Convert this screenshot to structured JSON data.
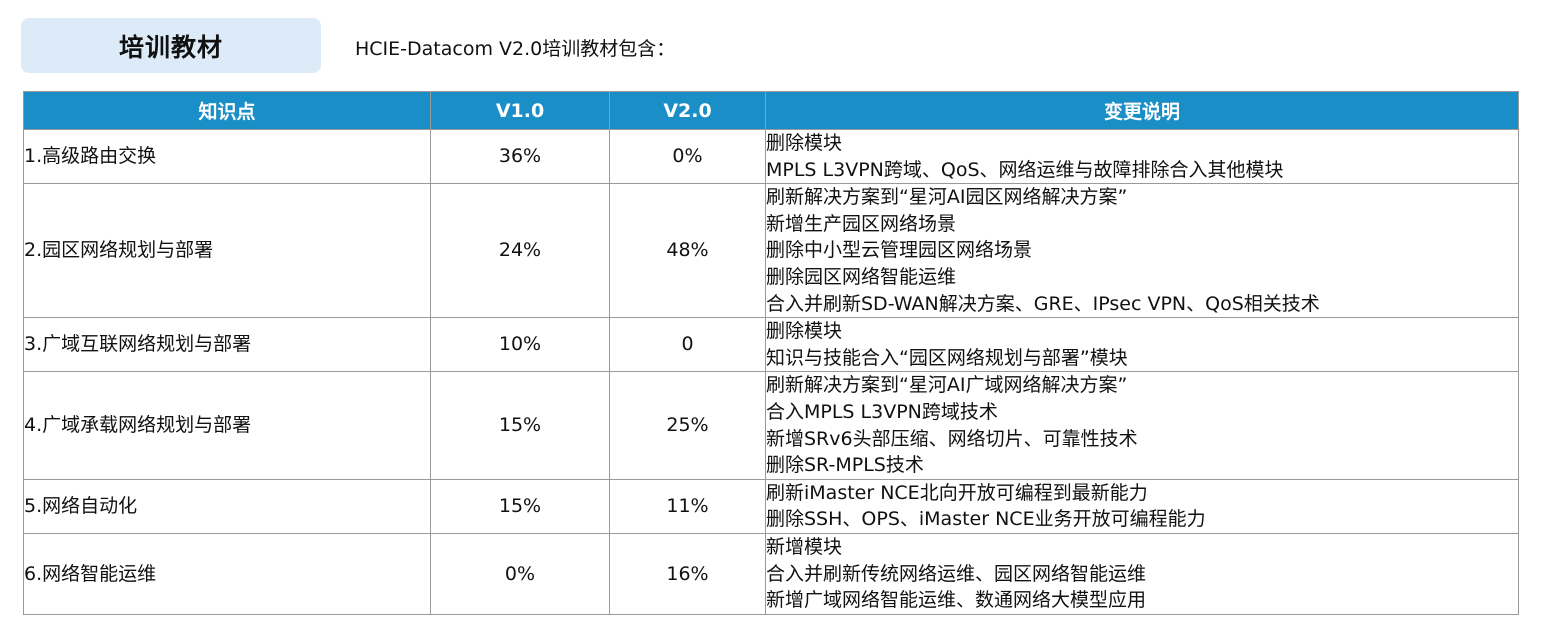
{
  "header": {
    "badge_title": "培训教材",
    "subtitle": "HCIE-Datacom V2.0培训教材包含："
  },
  "table": {
    "columns": [
      "知识点",
      "V1.0",
      "V2.0",
      "变更说明"
    ],
    "rows": [
      {
        "topic": "1.高级路由交换",
        "v1": "36%",
        "v2": "0%",
        "changes": [
          "删除模块",
          "MPLS L3VPN跨域、QoS、网络运维与故障排除合入其他模块"
        ]
      },
      {
        "topic": "2.园区网络规划与部署",
        "v1": "24%",
        "v2": "48%",
        "changes": [
          "刷新解决方案到“星河AI园区网络解决方案”",
          "新增生产园区网络场景",
          "删除中小型云管理园区网络场景",
          "删除园区网络智能运维",
          "合入并刷新SD-WAN解决方案、GRE、IPsec VPN、QoS相关技术"
        ]
      },
      {
        "topic": "3.广域互联网络规划与部署",
        "v1": "10%",
        "v2": "0",
        "changes": [
          "删除模块",
          "知识与技能合入“园区网络规划与部署”模块"
        ]
      },
      {
        "topic": "4.广域承载网络规划与部署",
        "v1": "15%",
        "v2": "25%",
        "changes": [
          "刷新解决方案到“星河AI广域网络解决方案”",
          "合入MPLS L3VPN跨域技术",
          "新增SRv6头部压缩、网络切片、可靠性技术",
          "删除SR-MPLS技术"
        ]
      },
      {
        "topic": "5.网络自动化",
        "v1": "15%",
        "v2": "11%",
        "changes": [
          "刷新iMaster NCE北向开放可编程到最新能力",
          "删除SSH、OPS、iMaster NCE业务开放可编程能力"
        ]
      },
      {
        "topic": "6.网络智能运维",
        "v1": "0%",
        "v2": "16%",
        "changes": [
          "新增模块",
          "合入并刷新传统网络运维、园区网络智能运维",
          "新增广域网络智能运维、数通网络大模型应用"
        ]
      }
    ]
  }
}
